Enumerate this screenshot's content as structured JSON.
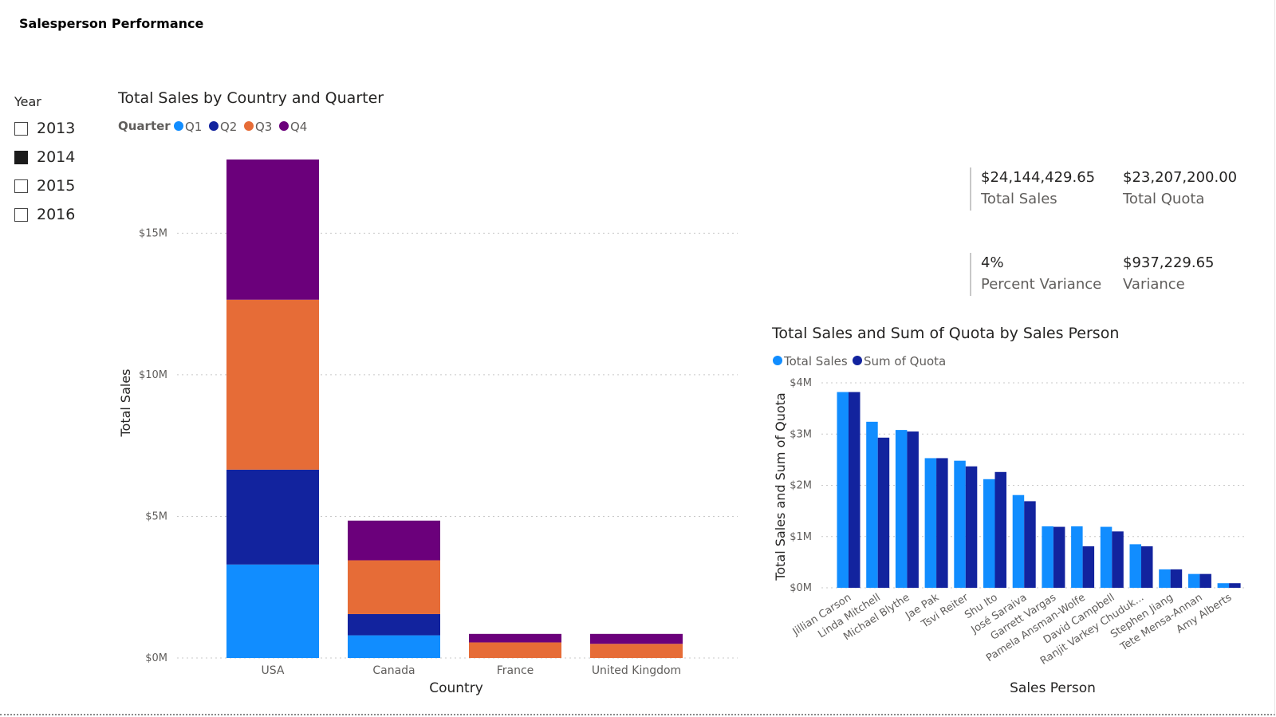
{
  "report": {
    "title": "Salesperson Performance"
  },
  "year_slicer": {
    "title": "Year",
    "items": [
      {
        "label": "2013",
        "checked": false
      },
      {
        "label": "2014",
        "checked": true
      },
      {
        "label": "2015",
        "checked": false
      },
      {
        "label": "2016",
        "checked": false
      }
    ]
  },
  "kpis": [
    {
      "value": "$24,144,429.65",
      "label": "Total Sales"
    },
    {
      "value": "$23,207,200.00",
      "label": "Total Quota"
    },
    {
      "value": "4%",
      "label": "Percent Variance"
    },
    {
      "value": "$937,229.65",
      "label": "Variance"
    }
  ],
  "colors": {
    "q1": "#118DFF",
    "q2": "#12239E",
    "q3": "#E66C37",
    "q4": "#6B007B",
    "sales": "#118DFF",
    "quota": "#12239E"
  },
  "chart_data": [
    {
      "type": "bar",
      "stacked": true,
      "title": "Total Sales by Country and Quarter",
      "legend_title": "Quarter",
      "xlabel": "Country",
      "ylabel": "Total Sales",
      "categories": [
        "USA",
        "Canada",
        "France",
        "United Kingdom"
      ],
      "series": [
        {
          "name": "Q1",
          "values": [
            3.3,
            0.8,
            0.0,
            0.0
          ]
        },
        {
          "name": "Q2",
          "values": [
            3.35,
            0.75,
            0.0,
            0.0
          ]
        },
        {
          "name": "Q3",
          "values": [
            6.0,
            1.9,
            0.55,
            0.5
          ]
        },
        {
          "name": "Q4",
          "values": [
            4.95,
            1.4,
            0.3,
            0.35
          ]
        }
      ],
      "ylim": [
        0,
        17.6
      ],
      "yticks": [
        0,
        5,
        10,
        15
      ],
      "ytick_labels": [
        "$0M",
        "$5M",
        "$10M",
        "$15M"
      ],
      "grid": true,
      "legend_position": "top-left"
    },
    {
      "type": "bar",
      "title": "Total Sales and Sum of Quota by Sales Person",
      "xlabel": "Sales Person",
      "ylabel": "Total Sales and Sum of Quota",
      "categories": [
        "Jillian Carson",
        "Linda Mitchell",
        "Michael Blythe",
        "Jae Pak",
        "Tsvi Reiter",
        "Shu Ito",
        "José Saraiva",
        "Garrett Vargas",
        "Pamela Ansman-Wolfe",
        "David Campbell",
        "Ranjit Varkey Chuduk...",
        "Stephen Jiang",
        "Tete Mensa-Annan",
        "Amy Alberts"
      ],
      "series": [
        {
          "name": "Total Sales",
          "values": [
            3.82,
            3.24,
            3.08,
            2.53,
            2.48,
            2.12,
            1.81,
            1.2,
            1.2,
            1.19,
            0.85,
            0.36,
            0.27,
            0.09
          ]
        },
        {
          "name": "Sum of Quota",
          "values": [
            3.82,
            2.93,
            3.05,
            2.53,
            2.37,
            2.26,
            1.69,
            1.19,
            0.81,
            1.1,
            0.81,
            0.36,
            0.27,
            0.09
          ]
        }
      ],
      "ylim": [
        0,
        4
      ],
      "yticks": [
        0,
        1,
        2,
        3,
        4
      ],
      "ytick_labels": [
        "$0M",
        "$1M",
        "$2M",
        "$3M",
        "$4M"
      ],
      "grid": true,
      "legend_position": "top-left"
    }
  ]
}
